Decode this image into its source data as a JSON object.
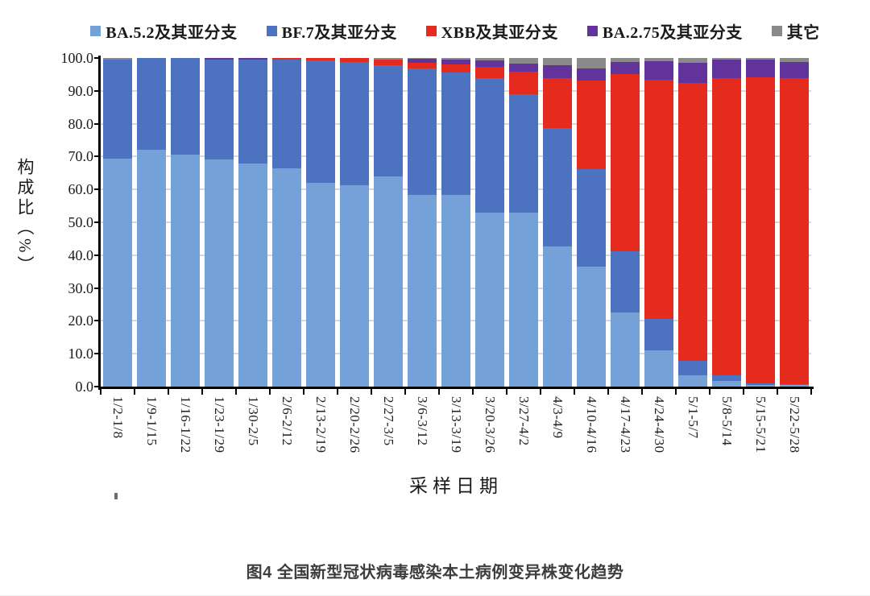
{
  "figure": {
    "caption": "图4 全国新型冠状病毒感染本土病例变异株变化趋势"
  },
  "chart_data": {
    "type": "bar",
    "stacked": true,
    "orientation": "vertical",
    "xlabel": "采样日期",
    "ylabel": "构成比（%）",
    "ylim": [
      0,
      100
    ],
    "grid": true,
    "legend_position": "top",
    "yticks": [
      {
        "value": 100,
        "label": "100.0"
      },
      {
        "value": 90,
        "label": "90.0"
      },
      {
        "value": 80,
        "label": "80.0"
      },
      {
        "value": 70,
        "label": "70.0"
      },
      {
        "value": 60,
        "label": "60.0"
      },
      {
        "value": 50,
        "label": "50.0"
      },
      {
        "value": 40,
        "label": "40.0"
      },
      {
        "value": 30,
        "label": "30.0"
      },
      {
        "value": 20,
        "label": "20.0"
      },
      {
        "value": 10,
        "label": "10.0"
      },
      {
        "value": 0,
        "label": "0.0"
      }
    ],
    "categories": [
      "1/2-1/8",
      "1/9-1/15",
      "1/16-1/22",
      "1/23-1/29",
      "1/30-2/5",
      "2/6-2/12",
      "2/13-2/19",
      "2/20-2/26",
      "2/27-3/5",
      "3/6-3/12",
      "3/13-3/19",
      "3/20-3/26",
      "3/27-4/2",
      "4/3-4/9",
      "4/10-4/16",
      "4/17-4/23",
      "4/24-4/30",
      "5/1-5/7",
      "5/8-5/14",
      "5/15-5/21",
      "5/22-5/28"
    ],
    "series": [
      {
        "name": "BA.5.2及其亚分支",
        "color": "#74a1d8",
        "values": [
          69.3,
          72.0,
          70.6,
          69.0,
          67.8,
          66.5,
          62.0,
          61.3,
          64.0,
          58.4,
          58.3,
          53.0,
          53.0,
          42.6,
          36.6,
          22.6,
          11.0,
          3.5,
          1.8,
          0.6,
          0.4
        ]
      },
      {
        "name": "BF.7及其亚分支",
        "color": "#4c72c0",
        "values": [
          30.2,
          28.0,
          29.4,
          30.4,
          31.6,
          32.9,
          37.3,
          37.5,
          33.9,
          38.4,
          37.3,
          40.9,
          36.0,
          36.1,
          29.6,
          18.6,
          9.5,
          4.3,
          1.6,
          0.4,
          0.3
        ]
      },
      {
        "name": "XBB及其亚分支",
        "color": "#e52a1e",
        "values": [
          0,
          0,
          0,
          0,
          0,
          0.6,
          0.7,
          1.2,
          1.6,
          1.7,
          2.5,
          3.3,
          6.8,
          15.3,
          27.0,
          53.8,
          72.9,
          84.7,
          90.6,
          93.2,
          93.1
        ]
      },
      {
        "name": "BA.2.75及其亚分支",
        "color": "#61339b",
        "values": [
          0,
          0,
          0,
          0.6,
          0.6,
          0,
          0,
          0,
          0,
          1.2,
          1.5,
          2.1,
          2.4,
          3.8,
          3.6,
          3.8,
          5.6,
          6.0,
          5.5,
          5.3,
          4.9
        ]
      },
      {
        "name": "其它",
        "color": "#8a8a8a",
        "values": [
          0.5,
          0,
          0,
          0,
          0,
          0,
          0,
          0,
          0.5,
          0.3,
          0.4,
          0.7,
          1.8,
          2.2,
          3.2,
          1.2,
          1.0,
          1.5,
          0.5,
          0.5,
          1.3
        ]
      }
    ]
  }
}
